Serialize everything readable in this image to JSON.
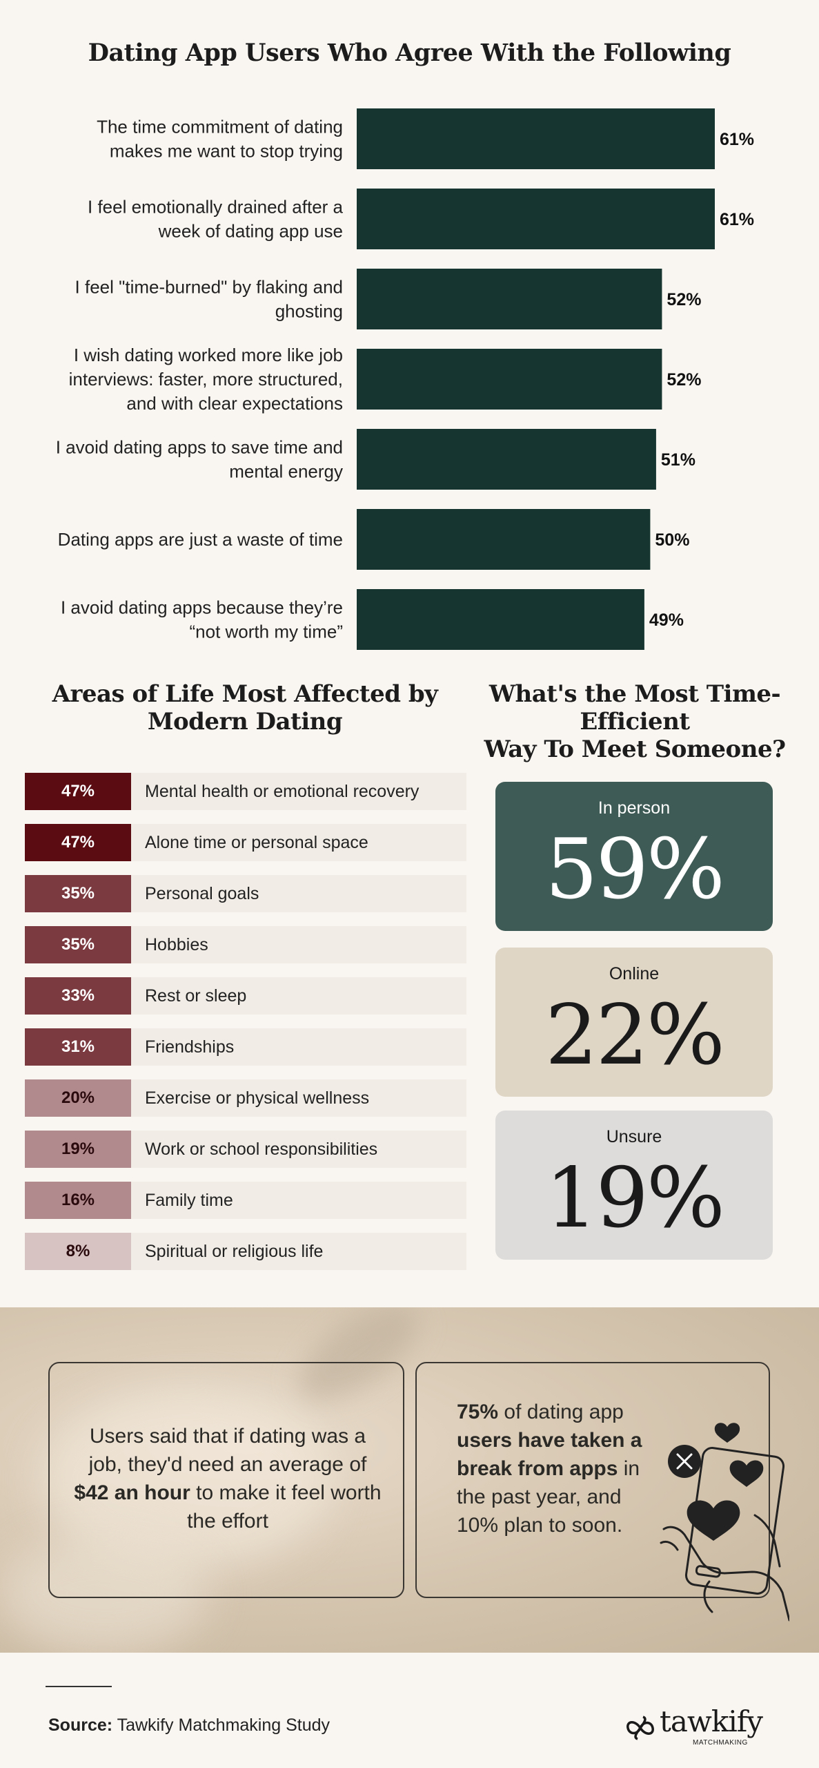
{
  "top_chart": {
    "title": "Dating App Users Who Agree With the Following"
  },
  "chart_data": [
    {
      "type": "bar",
      "orientation": "horizontal",
      "title": "Dating App Users Who Agree With the Following",
      "categories": [
        [
          "The time commitment of dating",
          "makes me want to stop trying"
        ],
        [
          "I feel emotionally drained after a",
          "week of dating app use"
        ],
        [
          "I feel \"time-burned\" by flaking and",
          "ghosting"
        ],
        [
          "I wish dating worked more like job",
          "interviews: faster, more structured,",
          "and with clear expectations"
        ],
        [
          "I avoid dating apps to save time and",
          "mental energy"
        ],
        [
          "Dating apps are just a waste of time"
        ],
        [
          "I avoid dating apps because they’re",
          "“not worth my time”"
        ]
      ],
      "values": [
        61,
        61,
        52,
        52,
        51,
        50,
        49
      ],
      "value_labels": [
        "61%",
        "61%",
        "52%",
        "52%",
        "51%",
        "50%",
        "49%"
      ],
      "unit": "%",
      "bar_color": "#163430"
    },
    {
      "type": "bar",
      "orientation": "horizontal",
      "title": "Areas of Life Most Affected by Modern Dating",
      "categories": [
        "Mental health or emotional recovery",
        "Alone time or personal space",
        "Personal goals",
        "Hobbies",
        "Rest or sleep",
        "Friendships",
        "Exercise or physical wellness",
        "Work or school responsibilities",
        "Family time",
        "Spiritual or religious life"
      ],
      "values": [
        47,
        47,
        35,
        35,
        33,
        31,
        20,
        19,
        16,
        8
      ],
      "value_labels": [
        "47%",
        "47%",
        "35%",
        "35%",
        "33%",
        "31%",
        "20%",
        "19%",
        "16%",
        "8%"
      ],
      "colors": [
        "#5a0c12",
        "#5a0c12",
        "#7b3940",
        "#7b3940",
        "#7b3940",
        "#7b3940",
        "#b18a8d",
        "#b18a8d",
        "#b18a8d",
        "#d8c3c3"
      ],
      "text_colors": [
        "#ffffff",
        "#ffffff",
        "#ffffff",
        "#ffffff",
        "#ffffff",
        "#ffffff",
        "#2a0a0d",
        "#2a0a0d",
        "#2a0a0d",
        "#2a0a0d"
      ]
    },
    {
      "type": "table",
      "title": "What's the Most Time-Efficient Way To Meet Someone?",
      "categories": [
        "In person",
        "Online",
        "Unsure"
      ],
      "values": [
        59,
        22,
        19
      ],
      "value_labels": [
        "59%",
        "22%",
        "19%"
      ],
      "colors": [
        "#3f5b55",
        "#e0d6c6",
        "#dddcda"
      ],
      "text_colors": [
        "#ffffff",
        "#1a1a1a",
        "#1a1a1a"
      ]
    }
  ],
  "areas": {
    "title_line1": "Areas of Life Most Affected by",
    "title_line2": "Modern Dating"
  },
  "efficiency": {
    "title_line1": "What's the Most Time-Efficient",
    "title_line2": "Way To Meet Someone?"
  },
  "callouts": {
    "left": {
      "pre": "Users said that if dating was a job, they'd need an average of ",
      "bold": "$42 an hour",
      "post": " to make it feel worth the effort"
    },
    "right": {
      "bold1": "75%",
      "text1": " of dating app ",
      "bold2": "users have taken a break from apps",
      "text2": " in the past year, and 10% plan to soon."
    }
  },
  "footer": {
    "source_label": "Source:",
    "source_text": " Tawkify Matchmaking Study",
    "logo_text": "tawkify",
    "logo_sub": "MATCHMAKING"
  }
}
